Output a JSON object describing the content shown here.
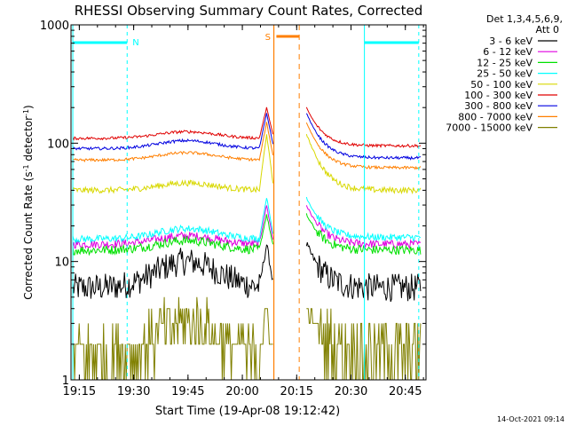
{
  "chart_data": {
    "type": "line",
    "title": "RHESSI Observing Summary Count Rates, Corrected",
    "xlabel": "Start Time (19-Apr-08 19:12:42)",
    "ylabel_main": "Corrected Count Rate (s",
    "ylabel_sup1": "-1",
    "ylabel_mid": " detector",
    "ylabel_sup2": "-1",
    "ylabel_end": ")",
    "x_range_min": [
      0,
      98
    ],
    "y_scale": "log",
    "y_range": [
      1,
      1000
    ],
    "x_ticks": [
      {
        "min": 2.3,
        "label": "19:15"
      },
      {
        "min": 17.3,
        "label": "19:30"
      },
      {
        "min": 32.3,
        "label": "19:45"
      },
      {
        "min": 47.3,
        "label": "20:00"
      },
      {
        "min": 62.3,
        "label": "20:15"
      },
      {
        "min": 77.3,
        "label": "20:30"
      },
      {
        "min": 92.3,
        "label": "20:45"
      }
    ],
    "y_ticks": [
      {
        "value": 1,
        "label": "1"
      },
      {
        "value": 10,
        "label": "10"
      },
      {
        "value": 100,
        "label": "100"
      },
      {
        "value": 1000,
        "label": "1000"
      }
    ],
    "legend": {
      "header1": "Det 1,3,4,5,6,9,",
      "header2": "Att 0",
      "position": "top-right-outside"
    },
    "series": [
      {
        "name": "3 - 6 keV",
        "color": "#000000",
        "pre_flare": 6,
        "hump": 10,
        "peak": 14,
        "post_flare": 6,
        "noise": 0.12
      },
      {
        "name": "6 - 12 keV",
        "color": "#e000e0",
        "pre_flare": 14,
        "hump": 16.5,
        "peak": 30,
        "post_flare": 14,
        "noise": 0.035
      },
      {
        "name": "12 - 25 keV",
        "color": "#00e000",
        "pre_flare": 12.5,
        "hump": 15,
        "peak": 25,
        "post_flare": 12.5,
        "noise": 0.04
      },
      {
        "name": "25 - 50 keV",
        "color": "#00ffff",
        "pre_flare": 15.5,
        "hump": 19,
        "peak": 35,
        "post_flare": 16,
        "noise": 0.03
      },
      {
        "name": "50 - 100 keV",
        "color": "#d8d800",
        "pre_flare": 40,
        "hump": 46,
        "peak": 120,
        "post_flare": 40,
        "noise": 0.025
      },
      {
        "name": "100 - 300 keV",
        "color": "#e00000",
        "pre_flare": 110,
        "hump": 125,
        "peak": 200,
        "post_flare": 95,
        "noise": 0.012
      },
      {
        "name": "300 - 800 keV",
        "color": "#0000e0",
        "pre_flare": 90,
        "hump": 105,
        "peak": 180,
        "post_flare": 75,
        "noise": 0.012
      },
      {
        "name": "800 - 7000 keV",
        "color": "#ff7f00",
        "pre_flare": 72,
        "hump": 83,
        "peak": 150,
        "post_flare": 62,
        "noise": 0.012
      },
      {
        "name": "7000 - 15000 keV",
        "color": "#808000",
        "pre_flare": 1.6,
        "hump": 3.0,
        "peak": 4,
        "post_flare": 1.8,
        "noise": 0.25
      }
    ],
    "annotations": {
      "night_markers": [
        {
          "label": "N",
          "start_min": 0.5,
          "end_min": 15.5,
          "color": "#00ffff"
        },
        {
          "label": "",
          "start_min": 81,
          "end_min": 96,
          "color": "#00ffff"
        }
      ],
      "saa_marker": {
        "label": "S",
        "start_min": 56,
        "end_min": 63,
        "color": "#ff7f00"
      },
      "flare_gap_min": [
        56,
        64
      ],
      "flare_peak_min": 54,
      "post_peak_min": 65
    },
    "timestamp": "14-Oct-2021 09:14"
  }
}
